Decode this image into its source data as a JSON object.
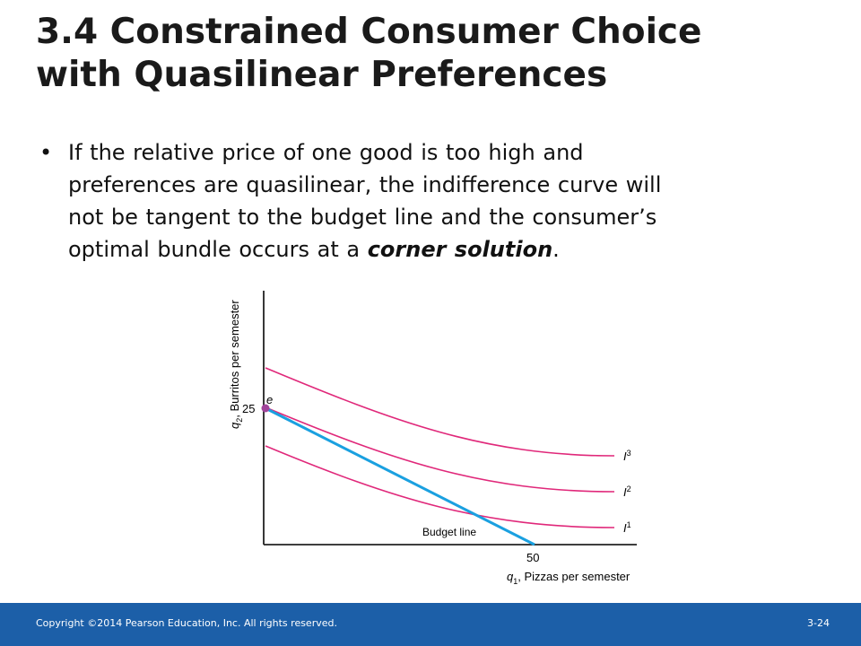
{
  "slide": {
    "title_lines": [
      "3.4  Constrained Consumer Choice",
      "with Quasilinear Preferences"
    ],
    "bullet": {
      "lines": [
        "If the relative price of one good is too high and",
        "preferences are quasilinear, the indifference curve will",
        "not be tangent to the budget line and the consumer’s"
      ],
      "last_line_prefix": "optimal bundle occurs at a ",
      "emphasis": "corner solution",
      "last_line_suffix": "."
    }
  },
  "figure": {
    "y_axis_label": [
      "q",
      "2",
      ", Burritos per semester"
    ],
    "x_axis_label": [
      "q",
      "1",
      ", Pizzas per semester"
    ],
    "y_tick": "25",
    "x_tick": "50",
    "point_label": "e",
    "budget_label": "Budget line",
    "curves": [
      {
        "name": "I",
        "sup": "3"
      },
      {
        "name": "I",
        "sup": "2"
      },
      {
        "name": "I",
        "sup": "1"
      }
    ],
    "colors": {
      "indifference": "#e0287a",
      "budget": "#1aa0e0",
      "point": "#a0449a",
      "axes": "#222222"
    }
  },
  "footer": {
    "copyright": "Copyright ©2014 Pearson Education, Inc. All rights reserved.",
    "page": "3-24"
  }
}
